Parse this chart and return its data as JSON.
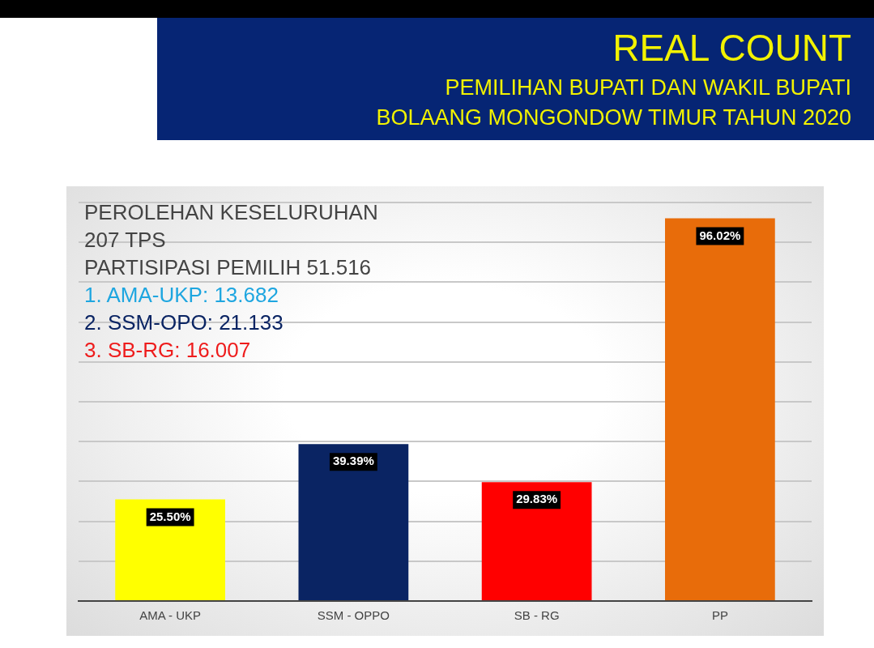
{
  "chart_data": {
    "type": "bar",
    "title": "REAL COUNT",
    "subtitle": "PEMILIHAN BUPATI DAN WAKIL BUPATI\nBOLAANG MONGONDOW TIMUR TAHUN 2020",
    "categories": [
      "AMA - UKP",
      "SSM - OPPO",
      "SB - RG",
      "PP"
    ],
    "values": [
      25.5,
      39.39,
      29.83,
      96.02
    ],
    "colors": [
      "#ffff00",
      "#0a2463",
      "#ff0000",
      "#e86c0a"
    ],
    "value_labels": [
      "25.50%",
      "39.39%",
      "29.83%",
      "96.02%"
    ],
    "ylim": [
      0,
      100
    ],
    "yticks": [
      {
        "value": 0,
        "label": null
      },
      {
        "value": 10,
        "label": null
      },
      {
        "value": 20,
        "label": null
      },
      {
        "value": 30,
        "label": null
      },
      {
        "value": 40,
        "label": null
      },
      {
        "value": 50,
        "label": null
      },
      {
        "value": 60,
        "label": null
      },
      {
        "value": 70,
        "label": null
      },
      {
        "value": 80,
        "label": null
      },
      {
        "value": 90,
        "label": null
      },
      {
        "value": 100,
        "label": null
      }
    ],
    "grid": "y",
    "legend": false,
    "tick_labels": "x",
    "annotations": [
      "PEROLEHAN KESELURUHAN",
      "207 TPS",
      "PARTISIPASI PEMILIH 51.516",
      "1. AMA-UKP: 13.682",
      "2. SSM-OPO: 21.133",
      "3. SB-RG: 16.007"
    ]
  }
}
